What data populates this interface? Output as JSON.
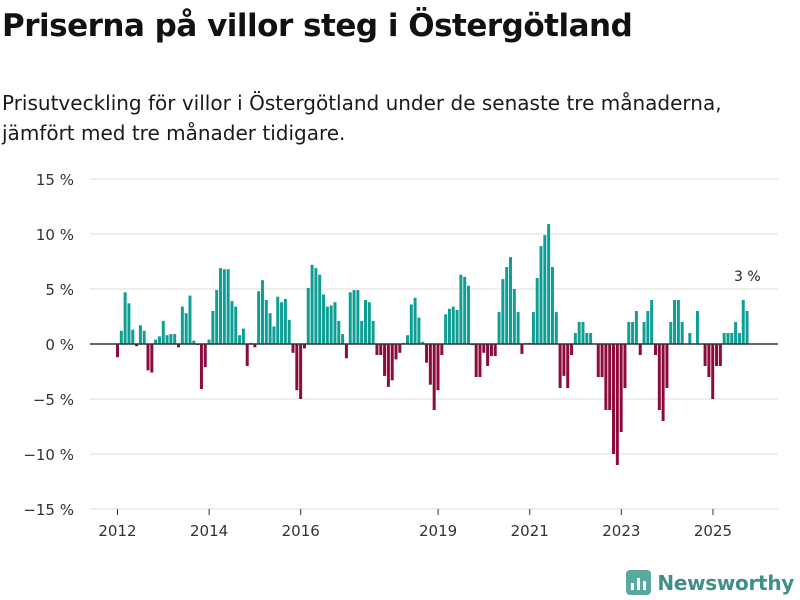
{
  "header": {
    "title": "Priserna på villor steg i Östergötland",
    "subtitle": "Prisutveckling för villor i Östergötland under de senaste tre månaderna, jämfört med tre månader tidigare."
  },
  "brand": {
    "name": "Newsworthy",
    "icon": "bar-chart-logo-icon"
  },
  "colors": {
    "positive": "#0f9e94",
    "negative": "#8c0a3c",
    "grid": "#dedede",
    "zero": "#333333"
  },
  "chart_data": {
    "type": "bar",
    "title": "Priserna på villor steg i Östergötland",
    "xlabel": "",
    "ylabel": "",
    "ylim": [
      -15,
      15
    ],
    "yticks": [
      15,
      10,
      5,
      0,
      -5,
      -10,
      -15
    ],
    "ytick_labels": [
      "15 %",
      "10 %",
      "5 %",
      "0 %",
      "−5 %",
      "−10 %",
      "−15 %"
    ],
    "xlim": [
      2011.4,
      2026.42
    ],
    "xticks": [
      2012,
      2014,
      2016,
      2019,
      2021,
      2023,
      2025
    ],
    "xtick_labels": [
      "2012",
      "2014",
      "2016",
      "2019",
      "2021",
      "2023",
      "2025"
    ],
    "annotation": {
      "text": "3 %",
      "x": 2025.75,
      "y": 3
    },
    "x_start": 2012,
    "x_step": 0.0833,
    "values": [
      -1.2,
      1.2,
      4.7,
      3.7,
      1.3,
      -0.2,
      1.7,
      1.2,
      -2.4,
      -2.6,
      0.4,
      0.7,
      2.1,
      0.8,
      0.9,
      0.9,
      -0.3,
      3.4,
      2.8,
      4.4,
      0.3,
      -0.1,
      -4.1,
      -2.1,
      0.4,
      3.0,
      4.9,
      6.9,
      6.8,
      6.8,
      3.9,
      3.4,
      0.8,
      1.4,
      -2.0,
      0.1,
      -0.3,
      4.8,
      5.8,
      4.0,
      2.8,
      1.6,
      4.3,
      3.8,
      4.1,
      2.2,
      -0.8,
      -4.2,
      -5.0,
      -0.4,
      5.1,
      7.2,
      6.9,
      6.3,
      4.5,
      3.4,
      3.5,
      3.8,
      2.1,
      0.9,
      -1.3,
      4.7,
      4.9,
      4.9,
      2.1,
      4.0,
      3.8,
      2.1,
      -1.0,
      -1.0,
      -2.9,
      -3.9,
      -3.3,
      -1.4,
      -0.8,
      0.1,
      0.8,
      3.6,
      4.2,
      2.4,
      0.2,
      -1.7,
      -3.7,
      -6.0,
      -4.2,
      -1.0,
      2.7,
      3.2,
      3.4,
      3.1,
      6.3,
      6.1,
      5.3,
      -0.1,
      -3.0,
      -3.0,
      -0.8,
      -2.0,
      -1.1,
      -1.1,
      2.9,
      5.9,
      7.0,
      7.9,
      5.0,
      2.9,
      -0.9,
      0.1,
      0.1,
      2.9,
      6.0,
      8.9,
      9.9,
      10.9,
      7.0,
      2.9,
      -4.0,
      -2.9,
      -4.0,
      -1.0,
      1.0,
      2.0,
      2.0,
      1.0,
      1.0,
      0.0,
      -3.0,
      -3.0,
      -6.0,
      -6.0,
      -10.0,
      -11.0,
      -8.0,
      -4.0,
      2.0,
      2.0,
      3.0,
      -1.0,
      2.0,
      3.0,
      4.0,
      -1.0,
      -6.0,
      -7.0,
      -4.0,
      2.0,
      4.0,
      4.0,
      2.0,
      0.0,
      1.0,
      0.0,
      3.0,
      0.0,
      -2.0,
      -3.0,
      -5.0,
      -2.0,
      -2.0,
      1.0,
      1.0,
      1.0,
      2.0,
      1.0,
      4.0,
      3.0
    ]
  }
}
